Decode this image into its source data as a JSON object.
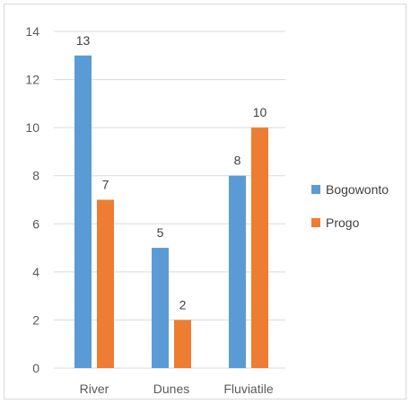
{
  "chart_data": {
    "type": "bar",
    "categories": [
      "River",
      "Dunes",
      "Fluviatile"
    ],
    "series": [
      {
        "name": "Bogowonto",
        "values": [
          13,
          5,
          8
        ],
        "color": "#5b9bd5"
      },
      {
        "name": "Progo",
        "values": [
          7,
          2,
          10
        ],
        "color": "#ed7d31"
      }
    ],
    "title": "",
    "xlabel": "",
    "ylabel": "",
    "ylim": [
      0,
      14
    ],
    "yticks": [
      0,
      2,
      4,
      6,
      8,
      10,
      12,
      14
    ],
    "grid": true,
    "data_labels": true,
    "legend_position": "right"
  }
}
